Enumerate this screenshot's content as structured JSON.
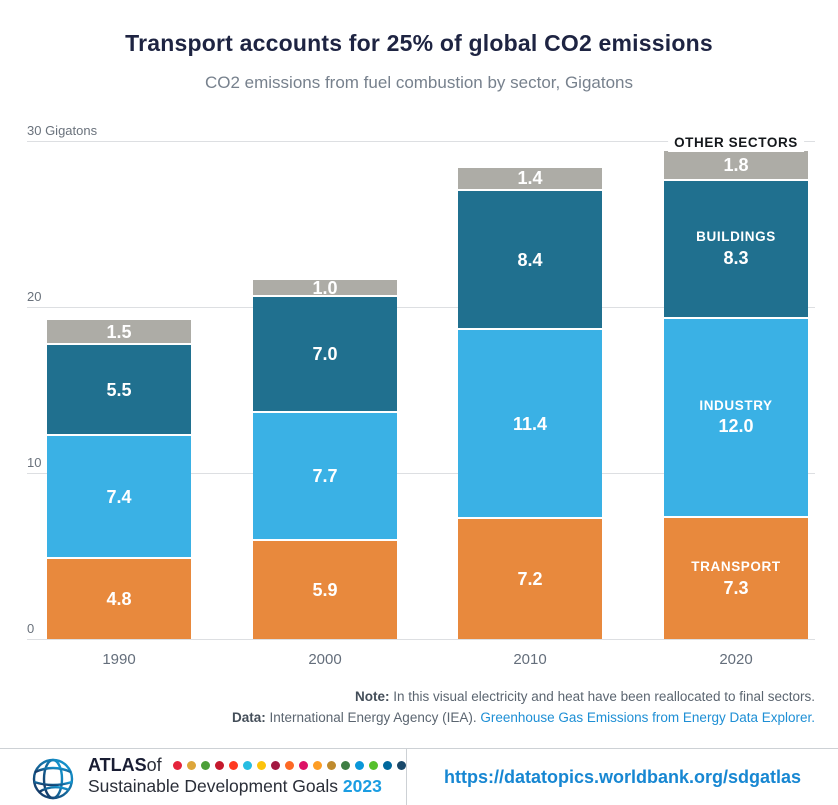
{
  "header": {
    "title": "Transport accounts for 25% of global CO2 emissions",
    "subtitle": "CO2 emissions from fuel combustion by sector, Gigatons"
  },
  "chart_data": {
    "type": "bar",
    "stacked": true,
    "categories": [
      "1990",
      "2000",
      "2010",
      "2020"
    ],
    "series": [
      {
        "name": "TRANSPORT",
        "color": "#E8893D",
        "values": [
          4.8,
          5.9,
          7.2,
          7.3
        ],
        "label_outside": false
      },
      {
        "name": "INDUSTRY",
        "color": "#3AB1E5",
        "values": [
          7.4,
          7.7,
          11.4,
          12.0
        ],
        "label_outside": false
      },
      {
        "name": "BUILDINGS",
        "color": "#20708F",
        "values": [
          5.5,
          7.0,
          8.4,
          8.3
        ],
        "label_outside": false
      },
      {
        "name": "OTHER SECTORS",
        "color": "#ADACA6",
        "values": [
          1.5,
          1.0,
          1.4,
          1.8
        ],
        "label_outside": true
      }
    ],
    "yticks": [
      {
        "value": 0,
        "label": "0"
      },
      {
        "value": 10,
        "label": "10"
      },
      {
        "value": 20,
        "label": "20"
      },
      {
        "value": 30,
        "label": "30 Gigatons"
      }
    ],
    "ylim": [
      0,
      30
    ],
    "grid": true,
    "legend_position": "inline-last-bar",
    "value_label_color": "#ffffff"
  },
  "notes": {
    "note_label": "Note:",
    "note_text": " In this visual electricity and heat have been reallocated to final sectors.",
    "data_label": "Data:",
    "data_text": " International Energy Agency (IEA). ",
    "data_link": "Greenhouse Gas Emissions from Energy Data Explorer."
  },
  "footer": {
    "logo_icon": "world-bank-globe-icon",
    "atlas_bold": "ATLAS",
    "atlas_of": " of",
    "line2": "Sustainable Development Goals ",
    "year": "2023",
    "year_color": "#1B9DE2",
    "url": "https://datatopics.worldbank.org/sdgatlas",
    "url_color": "#1787D2",
    "sdg_colors": [
      "#E5243B",
      "#DDA63A",
      "#4C9F38",
      "#C5192D",
      "#FF3A21",
      "#26BDE2",
      "#FCC30B",
      "#A21942",
      "#FD6925",
      "#DD1367",
      "#FD9D24",
      "#BF8B2E",
      "#3F7E44",
      "#0A97D9",
      "#56C02B",
      "#00689D",
      "#19486A"
    ]
  }
}
